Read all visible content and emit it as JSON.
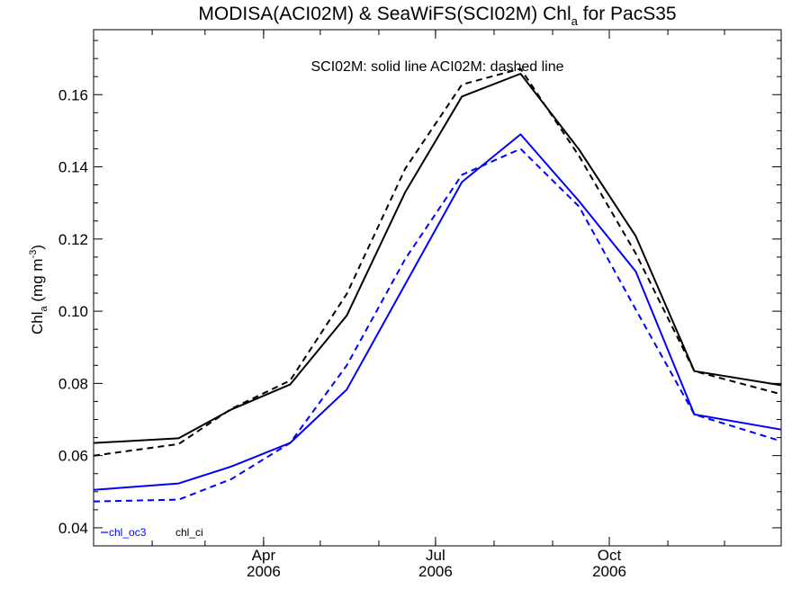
{
  "chart_data": {
    "type": "line",
    "title": {
      "main": "MODISA(ACI02M) & SeaWiFS(SCI02M)  Chl",
      "sub": "a",
      "tail": " for PacS35"
    },
    "annotation": "SCI02M: solid line   ACI02M: dashed line",
    "ylabel": {
      "main": "Chl",
      "sub": "a",
      "tail": " (mg m",
      "sup": "-3",
      "end": ")"
    },
    "xlabel": "",
    "ylim": [
      0.035,
      0.178
    ],
    "yticks": [
      "0.04",
      "0.06",
      "0.08",
      "0.10",
      "0.12",
      "0.14",
      "0.16"
    ],
    "xlim": [
      "2006-01-01",
      "2006-12-31"
    ],
    "xticks": [
      {
        "date": "2006-04-01",
        "month": "Apr",
        "year": "2006"
      },
      {
        "date": "2006-07-01",
        "month": "Jul",
        "year": "2006"
      },
      {
        "date": "2006-10-01",
        "month": "Oct",
        "year": "2006"
      }
    ],
    "x": [
      "2006-01-01",
      "2006-02-15",
      "2006-03-15",
      "2006-04-15",
      "2006-05-15",
      "2006-06-15",
      "2006-07-15",
      "2006-08-15",
      "2006-09-15",
      "2006-10-15",
      "2006-11-15",
      "2006-12-31"
    ],
    "series": [
      {
        "name": "chl_ci",
        "product": "SCI02M",
        "style": "solid",
        "color": "#000000",
        "values": [
          0.0635,
          0.0648,
          0.0728,
          0.0797,
          0.0988,
          0.133,
          0.1595,
          0.1658,
          0.1448,
          0.1208,
          0.0834,
          0.0795
        ]
      },
      {
        "name": "chl_ci",
        "product": "ACI02M",
        "style": "dashed",
        "color": "#000000",
        "values": [
          0.06,
          0.0632,
          0.073,
          0.0808,
          0.1048,
          0.1395,
          0.1628,
          0.1672,
          0.143,
          0.116,
          0.0834,
          0.077
        ]
      },
      {
        "name": "chl_oc3",
        "product": "SCI02M",
        "style": "solid",
        "color": "#0000ff",
        "values": [
          0.0505,
          0.0523,
          0.057,
          0.0635,
          0.0783,
          0.1075,
          0.1358,
          0.149,
          0.1305,
          0.111,
          0.0714,
          0.0672
        ]
      },
      {
        "name": "chl_oc3",
        "product": "ACI02M",
        "style": "dashed",
        "color": "#0000ff",
        "values": [
          0.0473,
          0.0478,
          0.0535,
          0.0635,
          0.085,
          0.1145,
          0.1378,
          0.145,
          0.129,
          0.1005,
          0.0714,
          0.064
        ]
      }
    ],
    "legend": [
      {
        "label": "chl_oc3",
        "color": "#0000ff"
      },
      {
        "label": "chl_ci",
        "color": "#000000"
      }
    ],
    "legend_position": "bottom-left",
    "grid": false
  }
}
